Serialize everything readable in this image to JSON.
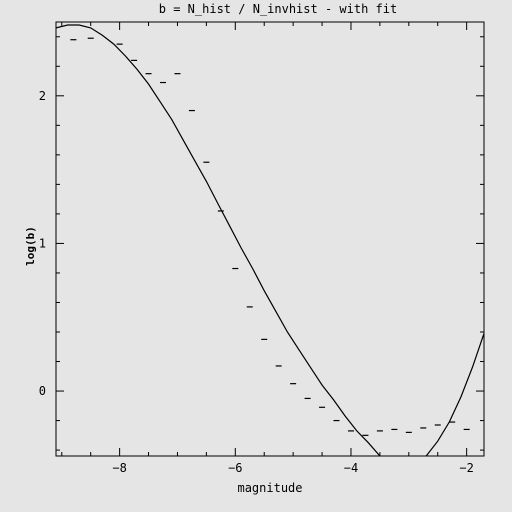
{
  "chart_data": {
    "type": "scatter",
    "title": "b = N_hist / N_invhist - with fit",
    "xlabel": "magnitude",
    "ylabel": "log(b)",
    "xlim": [
      -9.1,
      -1.7
    ],
    "ylim": [
      -0.44,
      2.5
    ],
    "x_ticks": [
      -8,
      -6,
      -4,
      -2
    ],
    "y_ticks": [
      0,
      1,
      2
    ],
    "grid": false,
    "series": [
      {
        "kind": "points",
        "x": [
          -8.8,
          -8.5,
          -8.0,
          -7.75,
          -7.5,
          -7.25,
          -7.0,
          -6.75,
          -6.5,
          -6.25,
          -6.0,
          -5.75,
          -5.5,
          -5.25,
          -5.0,
          -4.75,
          -4.5,
          -4.25,
          -4.0,
          -3.75,
          -3.5,
          -3.25,
          -3.0,
          -2.75,
          -2.5,
          -2.25,
          -2.0
        ],
        "y": [
          2.38,
          2.39,
          2.35,
          2.24,
          2.15,
          2.09,
          2.15,
          1.9,
          1.55,
          1.22,
          0.83,
          0.57,
          0.35,
          0.17,
          0.05,
          -0.05,
          -0.11,
          -0.2,
          -0.27,
          -0.3,
          -0.27,
          -0.26,
          -0.28,
          -0.25,
          -0.23,
          -0.21,
          -0.26
        ]
      },
      {
        "kind": "fit-line",
        "x": [
          -9.1,
          -8.9,
          -8.7,
          -8.5,
          -8.3,
          -8.1,
          -7.9,
          -7.7,
          -7.5,
          -7.3,
          -7.1,
          -6.9,
          -6.7,
          -6.5,
          -6.3,
          -6.1,
          -5.9,
          -5.7,
          -5.5,
          -5.3,
          -5.1,
          -4.9,
          -4.7,
          -4.5,
          -4.3,
          -4.1,
          -3.9,
          -3.7,
          -3.5,
          -3.3,
          -3.1,
          -2.9,
          -2.7,
          -2.5,
          -2.3,
          -2.1,
          -1.9,
          -1.7
        ],
        "y": [
          2.46,
          2.48,
          2.48,
          2.46,
          2.41,
          2.35,
          2.27,
          2.18,
          2.08,
          1.96,
          1.84,
          1.7,
          1.56,
          1.42,
          1.27,
          1.12,
          0.97,
          0.83,
          0.68,
          0.54,
          0.4,
          0.28,
          0.16,
          0.04,
          -0.06,
          -0.17,
          -0.27,
          -0.35,
          -0.44,
          -0.49,
          -0.52,
          -0.5,
          -0.44,
          -0.34,
          -0.21,
          -0.04,
          0.16,
          0.39
        ]
      }
    ]
  }
}
